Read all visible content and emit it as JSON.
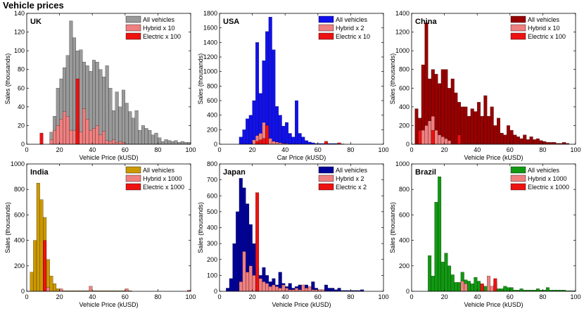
{
  "page": {
    "title": "Vehicle prices"
  },
  "chart_data": [
    {
      "type": "histogram",
      "title": "UK",
      "xlabel": "Vehicle Price (kUSD)",
      "ylabel": "Sales (thousands)",
      "xlim": [
        0,
        100
      ],
      "ylim": [
        0,
        140
      ],
      "xticks": [
        0,
        20,
        40,
        60,
        80,
        100
      ],
      "yticks": [
        0,
        20,
        40,
        60,
        80,
        100,
        120,
        140
      ],
      "bin_width": 2,
      "legend": [
        "All vehicles",
        "Hybrid x 10",
        "Electric x 100"
      ],
      "series": [
        {
          "name": "All vehicles",
          "color": "#9a9a9a",
          "x_start": 14,
          "values": [
            13,
            30,
            60,
            70,
            82,
            95,
            132,
            114,
            100,
            101,
            88,
            84,
            78,
            90,
            88,
            80,
            72,
            84,
            60,
            36,
            56,
            40,
            58,
            44,
            35,
            28,
            36,
            15,
            20,
            17,
            15,
            10,
            12,
            7,
            3,
            5,
            4,
            3,
            4,
            2,
            3,
            2,
            2
          ]
        },
        {
          "name": "Hybrid x 10",
          "color": "#f08080",
          "x_start": 14,
          "values": [
            5,
            15,
            20,
            27,
            35,
            30,
            15,
            15,
            20,
            13,
            38,
            27,
            15,
            17,
            20,
            10,
            14,
            4,
            3,
            5,
            2,
            3,
            2
          ]
        },
        {
          "name": "Electric x 100",
          "color": "#ee1111",
          "x_start": 8,
          "values": [
            12,
            0,
            0,
            0,
            0,
            0,
            0,
            0,
            0,
            0,
            0,
            70
          ]
        }
      ]
    },
    {
      "type": "histogram",
      "title": "USA",
      "xlabel": "Car Price (kUSD)",
      "ylabel": "Sales (thousands)",
      "xlim": [
        0,
        100
      ],
      "ylim": [
        0,
        1800
      ],
      "xticks": [
        0,
        20,
        40,
        60,
        80,
        100
      ],
      "yticks": [
        0,
        200,
        400,
        600,
        800,
        1000,
        1200,
        1400,
        1600,
        1800
      ],
      "bin_width": 2,
      "legend": [
        "All vehicles",
        "Hybrid x 2",
        "Electric x 10"
      ],
      "series": [
        {
          "name": "All vehicles",
          "color": "#1111ee",
          "x_start": 12,
          "values": [
            100,
            200,
            350,
            400,
            600,
            1400,
            700,
            1150,
            1550,
            1750,
            1300,
            520,
            400,
            250,
            300,
            150,
            100,
            600,
            150,
            100,
            50,
            30,
            20,
            10,
            10,
            10,
            20,
            10,
            10,
            10,
            5,
            5
          ]
        },
        {
          "name": "Hybrid x 2",
          "color": "#f08080",
          "x_start": 20,
          "values": [
            60,
            120,
            150,
            300,
            200,
            80,
            40,
            30,
            20,
            10,
            10
          ]
        },
        {
          "name": "Electric x 10",
          "color": "#ee1111",
          "x_start": 22,
          "values": [
            40,
            60,
            80,
            260,
            0,
            0,
            0,
            0,
            0,
            0,
            0,
            0,
            0,
            0,
            0,
            0,
            0,
            0,
            0,
            0,
            0,
            40,
            0,
            0,
            0,
            20
          ]
        }
      ]
    },
    {
      "type": "histogram",
      "title": "China",
      "xlabel": "Vehicle Price (kUSD)",
      "ylabel": "Sales (thousands)",
      "xlim": [
        0,
        100
      ],
      "ylim": [
        0,
        1400
      ],
      "xticks": [
        0,
        20,
        40,
        60,
        80,
        100
      ],
      "yticks": [
        0,
        200,
        400,
        600,
        800,
        1000,
        1200,
        1400
      ],
      "bin_width": 2,
      "legend": [
        "All vehicles",
        "Hybrid x 10",
        "Electric x 100"
      ],
      "series": [
        {
          "name": "All vehicles",
          "color": "#990000",
          "x_start": 2,
          "values": [
            380,
            280,
            850,
            1300,
            700,
            800,
            750,
            650,
            800,
            800,
            600,
            700,
            550,
            450,
            400,
            400,
            300,
            380,
            350,
            450,
            300,
            520,
            300,
            400,
            200,
            280,
            120,
            100,
            200,
            150,
            100,
            80,
            60,
            100,
            50,
            80,
            50,
            60,
            40,
            30,
            20,
            20,
            20,
            10,
            10,
            20,
            10
          ]
        },
        {
          "name": "Hybrid x 10",
          "color": "#f08080",
          "x_start": 4,
          "values": [
            50,
            150,
            200,
            250,
            300,
            150,
            100,
            80,
            60,
            40
          ]
        },
        {
          "name": "Electric x 100",
          "color": "#ee1111",
          "x_start": 4,
          "values": [
            150,
            0,
            0,
            0,
            150,
            0,
            0,
            0,
            0,
            0,
            0,
            0,
            100
          ]
        }
      ]
    },
    {
      "type": "histogram",
      "title": "India",
      "xlabel": "Vehicle Price (kUSD)",
      "ylabel": "Sales (thousands)",
      "xlim": [
        0,
        100
      ],
      "ylim": [
        0,
        1000
      ],
      "xticks": [
        0,
        20,
        40,
        60,
        80,
        100
      ],
      "yticks": [
        0,
        200,
        400,
        600,
        800,
        1000
      ],
      "bin_width": 2,
      "legend": [
        "All vehicles",
        "Hybrid x 1000",
        "Electric x 1000"
      ],
      "series": [
        {
          "name": "All vehicles",
          "color": "#cc9900",
          "x_start": 2,
          "values": [
            150,
            400,
            850,
            720,
            580,
            250,
            120,
            60,
            20,
            10,
            5,
            5,
            5,
            5,
            5,
            5,
            5,
            5,
            5,
            5,
            5,
            5,
            5,
            5,
            5,
            5,
            5,
            5,
            5,
            5,
            5
          ]
        },
        {
          "name": "Hybrid x 1000",
          "color": "#f08080",
          "x_start": 12,
          "values": [
            30,
            0,
            0,
            0,
            20,
            0,
            0,
            0,
            0,
            0,
            0,
            0,
            0,
            40,
            0,
            0,
            0,
            0,
            0,
            0,
            0,
            0,
            0,
            0,
            20,
            0,
            0,
            0,
            0,
            0,
            0,
            0,
            0,
            0,
            0,
            0,
            0,
            0,
            0,
            0,
            0,
            0,
            0,
            10
          ]
        },
        {
          "name": "Electric x 1000",
          "color": "#ee1111",
          "x_start": 10,
          "values": [
            400
          ]
        }
      ]
    },
    {
      "type": "histogram",
      "title": "Japan",
      "xlabel": "Vehicle Price (kUSD)",
      "ylabel": "Sales (thousands)",
      "xlim": [
        0,
        100
      ],
      "ylim": [
        0,
        800
      ],
      "xticks": [
        0,
        20,
        40,
        60,
        80,
        100
      ],
      "yticks": [
        0,
        100,
        200,
        300,
        400,
        500,
        600,
        700,
        800
      ],
      "bin_width": 2,
      "legend": [
        "All vehicles",
        "Hybrid x 2",
        "Electric x 2"
      ],
      "series": [
        {
          "name": "All vehicles",
          "color": "#000099",
          "x_start": 4,
          "values": [
            20,
            80,
            300,
            500,
            710,
            650,
            550,
            420,
            300,
            150,
            100,
            150,
            100,
            60,
            80,
            40,
            120,
            50,
            30,
            50,
            20,
            30,
            40,
            20,
            40,
            20,
            60,
            20,
            10,
            10,
            40,
            20,
            20,
            10,
            20,
            5,
            5,
            5,
            5,
            5,
            5,
            10
          ]
        },
        {
          "name": "Hybrid x 2",
          "color": "#f08080",
          "x_start": 12,
          "values": [
            60,
            250,
            120,
            160,
            100,
            30,
            80,
            60,
            50,
            30,
            40,
            30,
            20,
            40,
            20,
            10,
            10,
            20,
            10,
            40,
            20,
            30,
            10,
            10,
            10,
            10
          ]
        },
        {
          "name": "Electric x 2",
          "color": "#ee1111",
          "x_start": 22,
          "values": [
            620
          ]
        }
      ]
    },
    {
      "type": "histogram",
      "title": "Brazil",
      "xlabel": "Vehicle Price (kUSD)",
      "ylabel": "Sales (thousands)",
      "xlim": [
        0,
        100
      ],
      "ylim": [
        0,
        1000
      ],
      "xticks": [
        0,
        20,
        40,
        60,
        80,
        100
      ],
      "yticks": [
        0,
        200,
        400,
        600,
        800,
        1000
      ],
      "bin_width": 2,
      "legend": [
        "All vehicles",
        "Hybrid x 1000",
        "Electric x 1000"
      ],
      "series": [
        {
          "name": "All vehicles",
          "color": "#119911",
          "x_start": 10,
          "values": [
            280,
            120,
            700,
            900,
            230,
            300,
            200,
            130,
            70,
            70,
            150,
            90,
            80,
            60,
            110,
            80,
            50,
            40,
            40,
            30,
            60,
            20,
            20,
            40,
            30,
            30,
            10,
            10,
            20,
            10,
            10,
            10,
            10,
            20,
            10,
            10,
            30,
            10,
            10,
            10,
            10,
            10,
            5,
            5,
            5
          ]
        },
        {
          "name": "Hybrid x 1000",
          "color": "#f08080",
          "x_start": 30,
          "values": [
            80,
            60,
            0,
            0,
            0,
            0,
            0,
            0,
            120,
            40
          ]
        },
        {
          "name": "Electric x 1000",
          "color": "#ee1111",
          "x_start": 42,
          "values": [
            60,
            0,
            0,
            0,
            100
          ]
        }
      ]
    }
  ]
}
